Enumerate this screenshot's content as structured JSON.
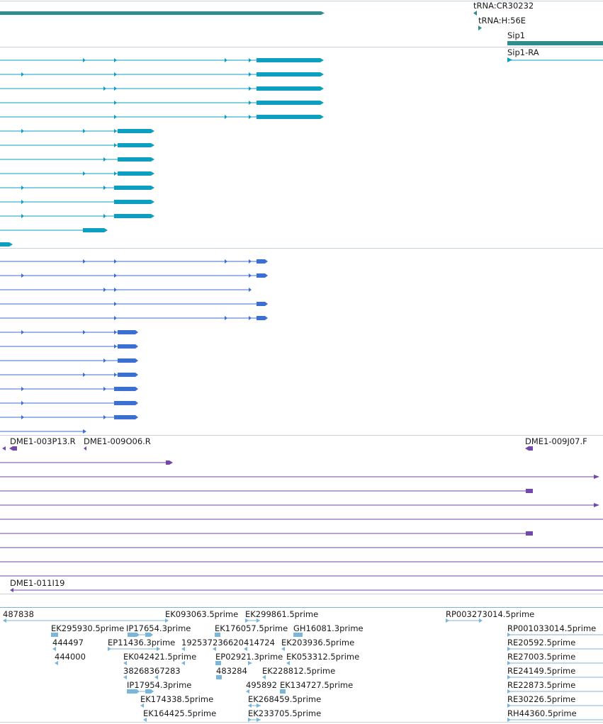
{
  "colors": {
    "gene": "#2f8d8f",
    "transcript_a": "#0e9fc0",
    "transcript_b": "#3b6fd1",
    "cdna": "#7249a8",
    "est": "#7ab6dc",
    "separator": "#bfcfe0"
  },
  "labels": {
    "trna_cr30232": "tRNA:CR30232",
    "trna_h56e": "tRNA:H:56E",
    "sip1": "Sip1",
    "sip1_ra": "Sip1-RA",
    "dme1_003p13": "DME1-003P13.R",
    "dme1_009o06": "DME1-009O06.R",
    "dme1_009j07": "DME1-009J07.F",
    "dme1_011i19": "DME1-011I19",
    "est_487838": "487838",
    "est_ek093063": "EK093063.5prime",
    "est_ek299861": "EK299861.5prime",
    "est_rp003273014": "RP003273014.5prime",
    "est_ek295930": "EK295930.5prime",
    "est_ip17654": "IP17654.3prime",
    "est_ek176057": "EK176057.5prime",
    "est_gh16081": "GH16081.3prime",
    "est_rp001033014": "RP001033014.5prime",
    "est_444497": "444497",
    "est_ep11436": "EP11436.3prime",
    "est_192537": "192537",
    "est_236620": "236620",
    "est_414724": "414724",
    "est_ek203936": "EK203936.5prime",
    "est_re20592": "RE20592.5prime",
    "est_444000": "444000",
    "est_ek042421": "EK042421.5prime",
    "est_ep02921": "EP02921.3prime",
    "est_ek053312": "EK053312.5prime",
    "est_re27003": "RE27003.5prime",
    "est_382683": "382683",
    "est_67283": "67283",
    "est_483284": "483284",
    "est_ek228812": "EK228812.5prime",
    "est_re24149": "RE24149.5prime",
    "est_ip17954": "IP17954.3prime",
    "est_495892": "495892",
    "est_ek134727": "EK134727.5prime",
    "est_re22873": "RE22873.5prime",
    "est_ek174338": "EK174338.5prime",
    "est_ek268459": "EK268459.5prime",
    "est_re30226": "RE30226.5prime",
    "est_ek164425": "EK164425.5prime",
    "est_ek233705": "EK233705.5prime",
    "est_rh44360": "RH44360.5prime"
  }
}
